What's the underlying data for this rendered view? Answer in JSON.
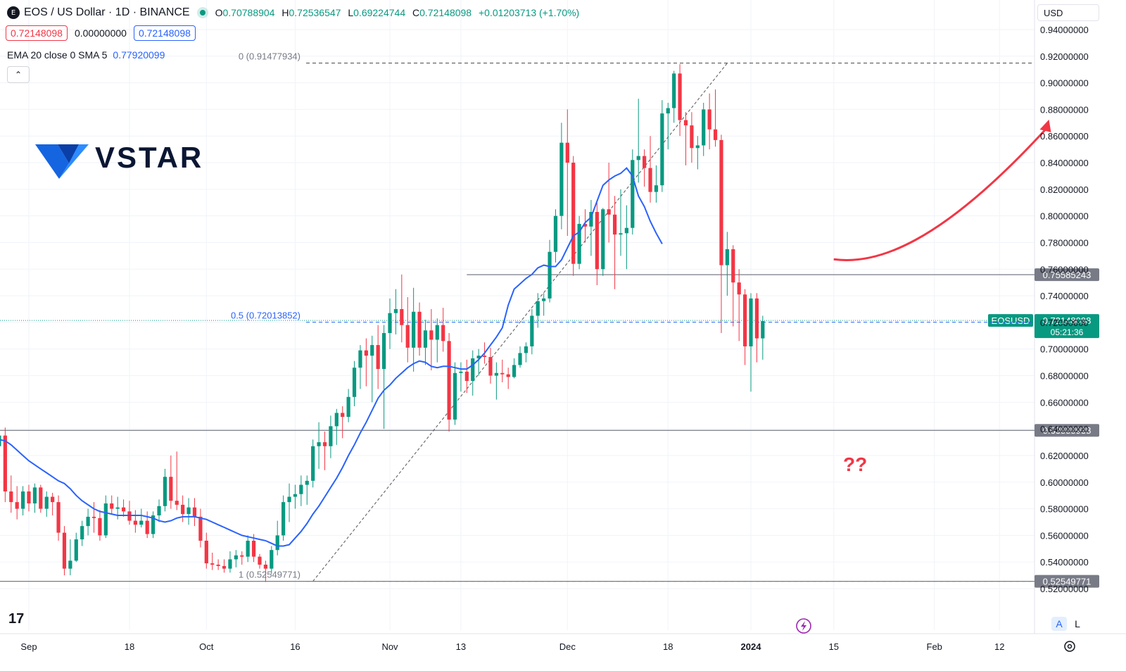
{
  "header": {
    "symbol_icon": "E",
    "title": "EOS / US Dollar · 1D · BINANCE",
    "o_label": "O",
    "o": "0.70788904",
    "h_label": "H",
    "h": "0.72536547",
    "l_label": "L",
    "l": "0.69224744",
    "c_label": "C",
    "c": "0.72148098",
    "change": "+0.01203713 (+1.70%)"
  },
  "quote": {
    "sell": "0.72148098",
    "spread": "0.00000000",
    "buy": "0.72148098"
  },
  "indicator": {
    "label": "EMA 20 close 0 SMA 5",
    "value": "0.77920099"
  },
  "collapse_icon": "chevron-up-icon",
  "currency": "USD",
  "logo": {
    "text": "VSTAR"
  },
  "tv_logo": "17",
  "annotation_text": "??",
  "scale_buttons": {
    "auto": "A",
    "log": "L"
  },
  "colors": {
    "up": "#089981",
    "down": "#f23645",
    "ema": "#2962ff",
    "arrow": "#f23645"
  },
  "chart_data": {
    "type": "candlestick",
    "ylim": [
      0.51,
      0.95
    ],
    "y_ticks": [
      "0.52000000",
      "0.54000000",
      "0.56000000",
      "0.58000000",
      "0.60000000",
      "0.62000000",
      "0.64000000",
      "0.66000000",
      "0.68000000",
      "0.70000000",
      "0.72000000",
      "0.74000000",
      "0.76000000",
      "0.78000000",
      "0.80000000",
      "0.82000000",
      "0.84000000",
      "0.86000000",
      "0.88000000",
      "0.90000000",
      "0.92000000",
      "0.94000000"
    ],
    "x_ticks": [
      {
        "label": "Sep",
        "bold": false,
        "date": "2023-09-01"
      },
      {
        "label": "18",
        "bold": false,
        "date": "2023-09-18"
      },
      {
        "label": "Oct",
        "bold": false,
        "date": "2023-10-01"
      },
      {
        "label": "16",
        "bold": false,
        "date": "2023-10-16"
      },
      {
        "label": "Nov",
        "bold": false,
        "date": "2023-11-01"
      },
      {
        "label": "13",
        "bold": false,
        "date": "2023-11-13"
      },
      {
        "label": "Dec",
        "bold": false,
        "date": "2023-12-01"
      },
      {
        "label": "18",
        "bold": false,
        "date": "2023-12-18"
      },
      {
        "label": "2024",
        "bold": true,
        "date": "2024-01-01"
      },
      {
        "label": "15",
        "bold": false,
        "date": "2024-01-15"
      },
      {
        "label": "Feb",
        "bold": false,
        "date": "2024-02-01"
      },
      {
        "label": "12",
        "bold": false,
        "date": "2024-02-12"
      }
    ],
    "price_tag": {
      "symbol": "EOSUSD",
      "price": "0.72148098",
      "countdown": "05:21:36",
      "value": 0.72148098
    },
    "levels": [
      {
        "value": 0.75585243,
        "label": "0.75585243",
        "start_date": "2023-11-14"
      },
      {
        "value": 0.63888938,
        "label": "0.63888938",
        "start_date": "2023-08-25"
      },
      {
        "value": 0.52549771,
        "label": "0.52549771",
        "start_date": "2023-08-25"
      }
    ],
    "fib": [
      {
        "ratio": "0",
        "value": 0.91477934,
        "label": "0 (0.91477934)"
      },
      {
        "ratio": "0.5",
        "value": 0.72013852,
        "label": "0.5 (0.72013852)"
      },
      {
        "ratio": "1",
        "value": 0.52549771,
        "label": "1 (0.52549771)"
      }
    ],
    "fib_trend": {
      "from": {
        "date": "2023-10-19",
        "value": 0.52549771
      },
      "to": {
        "date": "2023-12-28",
        "value": 0.91477934
      }
    },
    "arrow": {
      "from": {
        "date": "2024-01-15",
        "value": 0.7674
      },
      "to": {
        "date": "2024-02-20",
        "value": 0.866
      }
    },
    "ema_start": "2023-08-25",
    "ema": [
      0.635,
      0.633,
      0.632,
      0.631,
      0.628,
      0.624,
      0.62,
      0.616,
      0.613,
      0.61,
      0.607,
      0.604,
      0.601,
      0.599,
      0.595,
      0.59,
      0.586,
      0.583,
      0.58,
      0.578,
      0.577,
      0.576,
      0.575,
      0.575,
      0.575,
      0.575,
      0.575,
      0.574,
      0.573,
      0.571,
      0.57,
      0.571,
      0.573,
      0.574,
      0.574,
      0.574,
      0.573,
      0.572,
      0.57,
      0.568,
      0.566,
      0.564,
      0.562,
      0.56,
      0.559,
      0.558,
      0.557,
      0.556,
      0.554,
      0.552,
      0.552,
      0.553,
      0.558,
      0.563,
      0.569,
      0.576,
      0.582,
      0.589,
      0.596,
      0.603,
      0.611,
      0.62,
      0.628,
      0.637,
      0.645,
      0.654,
      0.663,
      0.669,
      0.673,
      0.678,
      0.682,
      0.686,
      0.689,
      0.691,
      0.69,
      0.687,
      0.686,
      0.687,
      0.687,
      0.686,
      0.685,
      0.685,
      0.688,
      0.692,
      0.697,
      0.703,
      0.709,
      0.716,
      0.733,
      0.745,
      0.749,
      0.753,
      0.756,
      0.761,
      0.763,
      0.762,
      0.762,
      0.767,
      0.776,
      0.785,
      0.788,
      0.795,
      0.799,
      0.811,
      0.823,
      0.827,
      0.83,
      0.832,
      0.836,
      0.83,
      0.815,
      0.807,
      0.796,
      0.787,
      0.779
    ],
    "candles_start": "2023-08-25",
    "candles": [
      [
        0.59,
        0.607,
        0.58,
        0.594
      ],
      [
        0.594,
        0.64,
        0.588,
        0.627
      ],
      [
        0.627,
        0.647,
        0.617,
        0.635
      ],
      [
        0.635,
        0.641,
        0.585,
        0.593
      ],
      [
        0.593,
        0.605,
        0.577,
        0.585
      ],
      [
        0.585,
        0.597,
        0.572,
        0.58
      ],
      [
        0.58,
        0.597,
        0.575,
        0.593
      ],
      [
        0.593,
        0.598,
        0.578,
        0.584
      ],
      [
        0.584,
        0.599,
        0.577,
        0.596
      ],
      [
        0.596,
        0.598,
        0.577,
        0.58
      ],
      [
        0.58,
        0.593,
        0.574,
        0.589
      ],
      [
        0.589,
        0.592,
        0.575,
        0.585
      ],
      [
        0.585,
        0.59,
        0.556,
        0.562
      ],
      [
        0.562,
        0.567,
        0.53,
        0.535
      ],
      [
        0.535,
        0.557,
        0.53,
        0.541
      ],
      [
        0.541,
        0.562,
        0.54,
        0.557
      ],
      [
        0.557,
        0.571,
        0.552,
        0.567
      ],
      [
        0.567,
        0.58,
        0.56,
        0.574
      ],
      [
        0.574,
        0.585,
        0.562,
        0.573
      ],
      [
        0.573,
        0.579,
        0.556,
        0.56
      ],
      [
        0.56,
        0.59,
        0.558,
        0.584
      ],
      [
        0.584,
        0.59,
        0.576,
        0.58
      ],
      [
        0.58,
        0.589,
        0.572,
        0.581
      ],
      [
        0.581,
        0.587,
        0.574,
        0.578
      ],
      [
        0.578,
        0.586,
        0.568,
        0.571
      ],
      [
        0.571,
        0.579,
        0.562,
        0.568
      ],
      [
        0.568,
        0.58,
        0.566,
        0.571
      ],
      [
        0.571,
        0.578,
        0.558,
        0.561
      ],
      [
        0.561,
        0.578,
        0.558,
        0.575
      ],
      [
        0.575,
        0.587,
        0.57,
        0.582
      ],
      [
        0.582,
        0.61,
        0.578,
        0.604
      ],
      [
        0.604,
        0.62,
        0.58,
        0.586
      ],
      [
        0.586,
        0.623,
        0.579,
        0.583
      ],
      [
        0.583,
        0.59,
        0.57,
        0.576
      ],
      [
        0.576,
        0.588,
        0.568,
        0.581
      ],
      [
        0.581,
        0.588,
        0.567,
        0.574
      ],
      [
        0.574,
        0.58,
        0.551,
        0.556
      ],
      [
        0.556,
        0.562,
        0.535,
        0.539
      ],
      [
        0.539,
        0.547,
        0.534,
        0.538
      ],
      [
        0.538,
        0.542,
        0.534,
        0.537
      ],
      [
        0.537,
        0.542,
        0.532,
        0.535
      ],
      [
        0.535,
        0.548,
        0.532,
        0.542
      ],
      [
        0.542,
        0.549,
        0.536,
        0.545
      ],
      [
        0.545,
        0.548,
        0.538,
        0.544
      ],
      [
        0.544,
        0.56,
        0.54,
        0.556
      ],
      [
        0.556,
        0.561,
        0.54,
        0.544
      ],
      [
        0.544,
        0.546,
        0.535,
        0.538
      ],
      [
        0.538,
        0.541,
        0.525,
        0.535
      ],
      [
        0.535,
        0.552,
        0.531,
        0.549
      ],
      [
        0.549,
        0.571,
        0.545,
        0.56
      ],
      [
        0.56,
        0.59,
        0.556,
        0.585
      ],
      [
        0.585,
        0.599,
        0.57,
        0.589
      ],
      [
        0.589,
        0.598,
        0.58,
        0.591
      ],
      [
        0.591,
        0.605,
        0.582,
        0.598
      ],
      [
        0.598,
        0.605,
        0.583,
        0.601
      ],
      [
        0.601,
        0.632,
        0.596,
        0.627
      ],
      [
        0.627,
        0.645,
        0.61,
        0.63
      ],
      [
        0.63,
        0.638,
        0.609,
        0.627
      ],
      [
        0.627,
        0.65,
        0.618,
        0.642
      ],
      [
        0.642,
        0.655,
        0.628,
        0.652
      ],
      [
        0.652,
        0.657,
        0.633,
        0.649
      ],
      [
        0.649,
        0.67,
        0.645,
        0.664
      ],
      [
        0.664,
        0.691,
        0.657,
        0.686
      ],
      [
        0.686,
        0.703,
        0.67,
        0.699
      ],
      [
        0.699,
        0.708,
        0.672,
        0.695
      ],
      [
        0.695,
        0.71,
        0.66,
        0.703
      ],
      [
        0.703,
        0.718,
        0.67,
        0.685
      ],
      [
        0.685,
        0.718,
        0.64,
        0.712
      ],
      [
        0.712,
        0.738,
        0.7,
        0.727
      ],
      [
        0.727,
        0.745,
        0.711,
        0.73
      ],
      [
        0.73,
        0.756,
        0.705,
        0.718
      ],
      [
        0.718,
        0.739,
        0.69,
        0.701
      ],
      [
        0.701,
        0.746,
        0.683,
        0.728
      ],
      [
        0.728,
        0.735,
        0.695,
        0.701
      ],
      [
        0.701,
        0.722,
        0.688,
        0.714
      ],
      [
        0.714,
        0.73,
        0.684,
        0.707
      ],
      [
        0.707,
        0.723,
        0.69,
        0.718
      ],
      [
        0.718,
        0.731,
        0.698,
        0.706
      ],
      [
        0.706,
        0.712,
        0.638,
        0.647
      ],
      [
        0.647,
        0.69,
        0.643,
        0.682
      ],
      [
        0.682,
        0.69,
        0.668,
        0.683
      ],
      [
        0.683,
        0.692,
        0.667,
        0.676
      ],
      [
        0.676,
        0.699,
        0.665,
        0.693
      ],
      [
        0.693,
        0.7,
        0.68,
        0.695
      ],
      [
        0.695,
        0.705,
        0.689,
        0.694
      ],
      [
        0.694,
        0.701,
        0.674,
        0.68
      ],
      [
        0.68,
        0.69,
        0.662,
        0.682
      ],
      [
        0.682,
        0.692,
        0.675,
        0.681
      ],
      [
        0.681,
        0.686,
        0.67,
        0.679
      ],
      [
        0.679,
        0.693,
        0.678,
        0.688
      ],
      [
        0.688,
        0.702,
        0.686,
        0.697
      ],
      [
        0.697,
        0.705,
        0.69,
        0.702
      ],
      [
        0.702,
        0.73,
        0.696,
        0.725
      ],
      [
        0.725,
        0.742,
        0.716,
        0.736
      ],
      [
        0.736,
        0.742,
        0.725,
        0.738
      ],
      [
        0.738,
        0.782,
        0.735,
        0.773
      ],
      [
        0.773,
        0.805,
        0.765,
        0.8
      ],
      [
        0.8,
        0.87,
        0.79,
        0.855
      ],
      [
        0.855,
        0.88,
        0.785,
        0.84
      ],
      [
        0.84,
        0.845,
        0.755,
        0.764
      ],
      [
        0.764,
        0.8,
        0.76,
        0.794
      ],
      [
        0.794,
        0.805,
        0.78,
        0.792
      ],
      [
        0.792,
        0.812,
        0.77,
        0.803
      ],
      [
        0.803,
        0.81,
        0.748,
        0.76
      ],
      [
        0.76,
        0.806,
        0.755,
        0.805
      ],
      [
        0.805,
        0.84,
        0.78,
        0.801
      ],
      [
        0.801,
        0.815,
        0.745,
        0.786
      ],
      [
        0.786,
        0.82,
        0.77,
        0.787
      ],
      [
        0.787,
        0.808,
        0.76,
        0.791
      ],
      [
        0.791,
        0.85,
        0.786,
        0.842
      ],
      [
        0.842,
        0.888,
        0.825,
        0.845
      ],
      [
        0.845,
        0.85,
        0.822,
        0.836
      ],
      [
        0.836,
        0.86,
        0.81,
        0.818
      ],
      [
        0.818,
        0.838,
        0.81,
        0.823
      ],
      [
        0.823,
        0.887,
        0.818,
        0.877
      ],
      [
        0.877,
        0.885,
        0.85,
        0.881
      ],
      [
        0.881,
        0.909,
        0.87,
        0.907
      ],
      [
        0.907,
        0.914,
        0.86,
        0.872
      ],
      [
        0.872,
        0.878,
        0.838,
        0.868
      ],
      [
        0.868,
        0.878,
        0.84,
        0.851
      ],
      [
        0.851,
        0.86,
        0.835,
        0.853
      ],
      [
        0.853,
        0.885,
        0.845,
        0.88
      ],
      [
        0.88,
        0.892,
        0.85,
        0.865
      ],
      [
        0.865,
        0.895,
        0.852,
        0.857
      ],
      [
        0.857,
        0.861,
        0.712,
        0.763
      ],
      [
        0.763,
        0.788,
        0.74,
        0.775
      ],
      [
        0.775,
        0.778,
        0.717,
        0.75
      ],
      [
        0.75,
        0.76,
        0.706,
        0.741
      ],
      [
        0.741,
        0.745,
        0.688,
        0.702
      ],
      [
        0.702,
        0.742,
        0.668,
        0.738
      ],
      [
        0.738,
        0.742,
        0.69,
        0.708
      ],
      [
        0.708,
        0.725,
        0.692,
        0.721
      ]
    ]
  }
}
